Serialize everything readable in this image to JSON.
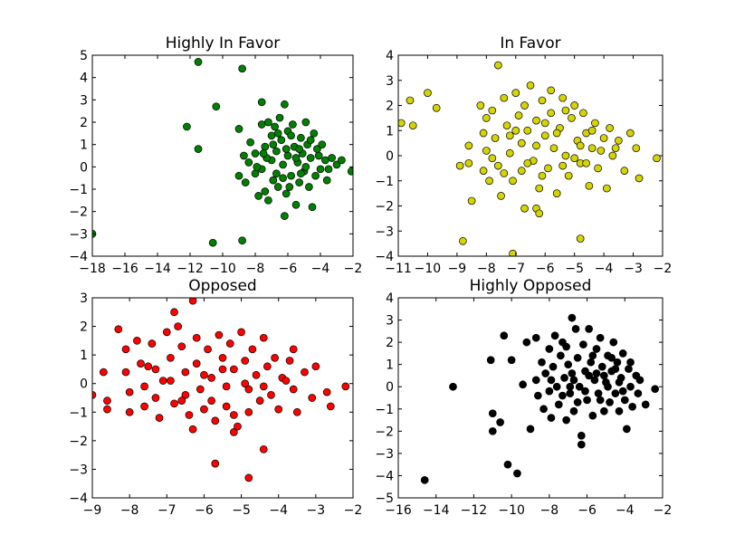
{
  "chart_data": [
    {
      "type": "scatter",
      "title": "Highly In Favor",
      "xlim": [
        -18,
        -2
      ],
      "ylim": [
        -4,
        5
      ],
      "xticks": [
        -18,
        -16,
        -14,
        -12,
        -10,
        -8,
        -6,
        -4,
        -2
      ],
      "yticks": [
        -4,
        -3,
        -2,
        -1,
        0,
        1,
        2,
        3,
        4,
        5
      ],
      "color": "#008000",
      "points": [
        [
          -18.0,
          -3.0
        ],
        [
          -11.5,
          4.7
        ],
        [
          -8.8,
          4.4
        ],
        [
          -12.2,
          1.8
        ],
        [
          -11.5,
          0.8
        ],
        [
          -10.4,
          2.7
        ],
        [
          -10.6,
          -3.4
        ],
        [
          -8.8,
          -3.3
        ],
        [
          -7.6,
          2.9
        ],
        [
          -6.2,
          2.8
        ],
        [
          -9.0,
          1.7
        ],
        [
          -9.0,
          -0.4
        ],
        [
          -8.6,
          -0.7
        ],
        [
          -8.4,
          0.2
        ],
        [
          -8.3,
          1.1
        ],
        [
          -8.0,
          0.6
        ],
        [
          -8.0,
          -0.3
        ],
        [
          -7.8,
          -1.3
        ],
        [
          -7.6,
          1.9
        ],
        [
          -7.6,
          -0.1
        ],
        [
          -7.4,
          0.9
        ],
        [
          -7.4,
          -1.1
        ],
        [
          -7.2,
          2.0
        ],
        [
          -7.2,
          -1.5
        ],
        [
          -7.0,
          1.4
        ],
        [
          -7.0,
          0.3
        ],
        [
          -6.9,
          -0.6
        ],
        [
          -6.8,
          1.8
        ],
        [
          -6.7,
          0.7
        ],
        [
          -6.6,
          -0.9
        ],
        [
          -6.5,
          2.2
        ],
        [
          -6.4,
          1.2
        ],
        [
          -6.3,
          0.1
        ],
        [
          -6.2,
          -2.2
        ],
        [
          -6.1,
          -1.2
        ],
        [
          -6.0,
          1.6
        ],
        [
          -6.0,
          0.5
        ],
        [
          -5.8,
          -0.4
        ],
        [
          -5.7,
          1.9
        ],
        [
          -5.6,
          0.9
        ],
        [
          -5.5,
          -1.7
        ],
        [
          -5.4,
          0.2
        ],
        [
          -5.3,
          -0.7
        ],
        [
          -5.2,
          1.3
        ],
        [
          -5.1,
          0.6
        ],
        [
          -5.0,
          -0.2
        ],
        [
          -4.9,
          2.0
        ],
        [
          -4.8,
          1.0
        ],
        [
          -4.7,
          -0.9
        ],
        [
          -4.6,
          0.4
        ],
        [
          -4.5,
          -1.8
        ],
        [
          -4.4,
          1.5
        ],
        [
          -4.3,
          -0.4
        ],
        [
          -4.2,
          0.8
        ],
        [
          -4.0,
          -0.1
        ],
        [
          -3.9,
          1.0
        ],
        [
          -3.7,
          0.3
        ],
        [
          -3.6,
          -0.6
        ],
        [
          -3.3,
          0.4
        ],
        [
          -3.0,
          0.1
        ],
        [
          -2.7,
          0.3
        ],
        [
          -2.1,
          -0.2
        ],
        [
          -8.7,
          0.5
        ],
        [
          -7.9,
          0.0
        ],
        [
          -7.3,
          0.4
        ],
        [
          -6.7,
          -0.3
        ],
        [
          -6.1,
          0.8
        ],
        [
          -5.5,
          0.4
        ],
        [
          -4.9,
          0.0
        ],
        [
          -4.1,
          0.5
        ],
        [
          -6.9,
          1.0
        ],
        [
          -6.3,
          -0.5
        ],
        [
          -5.8,
          1.4
        ],
        [
          -5.2,
          -0.3
        ],
        [
          -4.6,
          1.2
        ],
        [
          -3.5,
          -0.1
        ],
        [
          -7.5,
          0.6
        ],
        [
          -6.6,
          1.5
        ],
        [
          -5.9,
          -0.9
        ],
        [
          -5.3,
          0.8
        ]
      ]
    },
    {
      "type": "scatter",
      "title": "In Favor",
      "xlim": [
        -11,
        -2
      ],
      "ylim": [
        -4,
        4
      ],
      "xticks": [
        -11,
        -10,
        -9,
        -8,
        -7,
        -6,
        -5,
        -4,
        -3,
        -2
      ],
      "yticks": [
        -4,
        -3,
        -2,
        -1,
        0,
        1,
        2,
        3,
        4
      ],
      "color": "#d4d400",
      "points": [
        [
          -10.9,
          1.3
        ],
        [
          -10.6,
          2.2
        ],
        [
          -10.5,
          1.2
        ],
        [
          -10.0,
          2.5
        ],
        [
          -9.7,
          1.9
        ],
        [
          -8.9,
          -0.4
        ],
        [
          -8.8,
          -3.4
        ],
        [
          -7.6,
          3.6
        ],
        [
          -7.1,
          -3.9
        ],
        [
          -6.3,
          -2.1
        ],
        [
          -6.2,
          -2.3
        ],
        [
          -4.8,
          -3.3
        ],
        [
          -6.7,
          -2.1
        ],
        [
          -8.6,
          0.4
        ],
        [
          -8.6,
          -0.3
        ],
        [
          -8.5,
          -1.8
        ],
        [
          -8.2,
          2.0
        ],
        [
          -8.1,
          0.9
        ],
        [
          -8.1,
          -0.6
        ],
        [
          -8.0,
          1.5
        ],
        [
          -8.0,
          0.2
        ],
        [
          -7.9,
          -1.0
        ],
        [
          -7.8,
          1.8
        ],
        [
          -7.7,
          0.7
        ],
        [
          -7.6,
          -0.4
        ],
        [
          -7.5,
          -1.6
        ],
        [
          -7.4,
          2.3
        ],
        [
          -7.3,
          1.2
        ],
        [
          -7.2,
          0.1
        ],
        [
          -7.1,
          -1.0
        ],
        [
          -7.0,
          2.5
        ],
        [
          -6.9,
          1.6
        ],
        [
          -6.8,
          0.5
        ],
        [
          -6.8,
          -0.6
        ],
        [
          -6.7,
          2.0
        ],
        [
          -6.6,
          1.0
        ],
        [
          -6.5,
          2.8
        ],
        [
          -6.4,
          -0.2
        ],
        [
          -6.3,
          1.4
        ],
        [
          -6.2,
          -1.3
        ],
        [
          -6.1,
          2.2
        ],
        [
          -6.0,
          0.8
        ],
        [
          -5.9,
          -0.5
        ],
        [
          -5.8,
          2.6
        ],
        [
          -5.8,
          1.7
        ],
        [
          -5.7,
          0.3
        ],
        [
          -5.6,
          -1.5
        ],
        [
          -5.5,
          1.1
        ],
        [
          -5.4,
          2.3
        ],
        [
          -5.3,
          0.0
        ],
        [
          -5.2,
          -0.8
        ],
        [
          -5.1,
          1.5
        ],
        [
          -5.0,
          2.0
        ],
        [
          -4.9,
          0.6
        ],
        [
          -4.8,
          -0.3
        ],
        [
          -4.7,
          1.7
        ],
        [
          -4.6,
          0.9
        ],
        [
          -4.5,
          -1.2
        ],
        [
          -4.4,
          0.3
        ],
        [
          -4.3,
          1.3
        ],
        [
          -4.2,
          -0.5
        ],
        [
          -4.0,
          0.7
        ],
        [
          -3.9,
          -1.3
        ],
        [
          -3.8,
          1.1
        ],
        [
          -3.7,
          0.0
        ],
        [
          -3.5,
          0.6
        ],
        [
          -3.3,
          -0.6
        ],
        [
          -3.1,
          0.9
        ],
        [
          -2.9,
          0.3
        ],
        [
          -2.8,
          -0.9
        ],
        [
          -2.2,
          -0.1
        ],
        [
          -7.2,
          0.8
        ],
        [
          -6.6,
          -0.3
        ],
        [
          -6.0,
          1.3
        ],
        [
          -5.4,
          -0.4
        ],
        [
          -4.8,
          0.4
        ],
        [
          -4.1,
          0.2
        ],
        [
          -7.8,
          -0.1
        ],
        [
          -7.0,
          1.0
        ],
        [
          -6.3,
          0.4
        ],
        [
          -5.6,
          0.9
        ],
        [
          -5.0,
          -0.1
        ],
        [
          -4.4,
          1.0
        ],
        [
          -3.6,
          0.3
        ],
        [
          -7.4,
          -0.7
        ],
        [
          -6.1,
          -0.8
        ],
        [
          -5.3,
          1.8
        ],
        [
          -4.6,
          -0.3
        ]
      ]
    },
    {
      "type": "scatter",
      "title": "Opposed",
      "xlim": [
        -9,
        -2
      ],
      "ylim": [
        -4,
        3
      ],
      "xticks": [
        -9,
        -8,
        -7,
        -6,
        -5,
        -4,
        -3,
        -2
      ],
      "yticks": [
        -4,
        -3,
        -2,
        -1,
        0,
        1,
        2,
        3
      ],
      "color": "#ff0000",
      "points": [
        [
          -9.0,
          -0.4
        ],
        [
          -8.7,
          0.4
        ],
        [
          -8.6,
          -0.6
        ],
        [
          -8.6,
          -0.9
        ],
        [
          -8.3,
          1.9
        ],
        [
          -8.1,
          1.2
        ],
        [
          -8.1,
          0.4
        ],
        [
          -8.0,
          -0.3
        ],
        [
          -8.0,
          -1.0
        ],
        [
          -7.8,
          1.5
        ],
        [
          -7.7,
          0.7
        ],
        [
          -7.6,
          -0.1
        ],
        [
          -7.6,
          -0.8
        ],
        [
          -7.4,
          1.4
        ],
        [
          -7.3,
          0.5
        ],
        [
          -7.3,
          -0.5
        ],
        [
          -7.2,
          -1.2
        ],
        [
          -7.0,
          1.8
        ],
        [
          -6.9,
          0.9
        ],
        [
          -6.9,
          0.1
        ],
        [
          -6.8,
          -0.7
        ],
        [
          -6.8,
          2.5
        ],
        [
          -6.7,
          2.0
        ],
        [
          -6.6,
          1.3
        ],
        [
          -6.5,
          0.4
        ],
        [
          -6.5,
          -0.4
        ],
        [
          -6.4,
          -1.1
        ],
        [
          -6.3,
          2.9
        ],
        [
          -6.2,
          1.6
        ],
        [
          -6.2,
          0.7
        ],
        [
          -6.1,
          -0.2
        ],
        [
          -6.0,
          -0.9
        ],
        [
          -5.9,
          1.2
        ],
        [
          -5.8,
          0.2
        ],
        [
          -5.8,
          -0.6
        ],
        [
          -5.7,
          -1.3
        ],
        [
          -5.6,
          1.7
        ],
        [
          -5.5,
          0.9
        ],
        [
          -5.4,
          -0.1
        ],
        [
          -5.4,
          -0.8
        ],
        [
          -5.3,
          1.4
        ],
        [
          -5.2,
          0.5
        ],
        [
          -5.2,
          -1.7
        ],
        [
          -5.1,
          -1.5
        ],
        [
          -5.0,
          1.8
        ],
        [
          -4.9,
          0.8
        ],
        [
          -4.8,
          -0.2
        ],
        [
          -4.8,
          -1.0
        ],
        [
          -4.7,
          1.2
        ],
        [
          -4.6,
          0.3
        ],
        [
          -4.5,
          -0.6
        ],
        [
          -4.4,
          1.6
        ],
        [
          -4.3,
          0.6
        ],
        [
          -4.2,
          -0.4
        ],
        [
          -4.1,
          0.9
        ],
        [
          -4.0,
          -0.9
        ],
        [
          -3.9,
          0.2
        ],
        [
          -3.7,
          0.8
        ],
        [
          -3.6,
          -0.2
        ],
        [
          -3.6,
          1.2
        ],
        [
          -3.5,
          -1.0
        ],
        [
          -3.3,
          0.4
        ],
        [
          -3.1,
          -0.5
        ],
        [
          -3.0,
          0.6
        ],
        [
          -2.7,
          -0.3
        ],
        [
          -2.6,
          -0.8
        ],
        [
          -2.2,
          -0.1
        ],
        [
          -5.7,
          -2.8
        ],
        [
          -4.8,
          -3.3
        ],
        [
          -4.4,
          -2.3
        ],
        [
          -6.3,
          -1.6
        ],
        [
          -5.2,
          -1.1
        ],
        [
          -7.1,
          0.1
        ],
        [
          -6.0,
          0.3
        ],
        [
          -4.9,
          0.0
        ],
        [
          -3.8,
          0.1
        ],
        [
          -6.6,
          -0.6
        ],
        [
          -5.5,
          0.5
        ],
        [
          -4.4,
          -0.1
        ],
        [
          -7.5,
          0.6
        ]
      ]
    },
    {
      "type": "scatter",
      "title": "Highly Opposed",
      "xlim": [
        -16,
        -2
      ],
      "ylim": [
        -5,
        4
      ],
      "xticks": [
        -16,
        -14,
        -12,
        -10,
        -8,
        -6,
        -4,
        -2
      ],
      "yticks": [
        -5,
        -4,
        -3,
        -2,
        -1,
        0,
        1,
        2,
        3,
        4
      ],
      "color": "#000000",
      "points": [
        [
          -14.6,
          -4.2
        ],
        [
          -13.1,
          0.0
        ],
        [
          -11.1,
          1.2
        ],
        [
          -11.0,
          -1.2
        ],
        [
          -11.0,
          -2.0
        ],
        [
          -10.6,
          -1.6
        ],
        [
          -10.4,
          2.3
        ],
        [
          -10.2,
          -3.5
        ],
        [
          -10.0,
          1.2
        ],
        [
          -9.7,
          -3.9
        ],
        [
          -9.4,
          0.1
        ],
        [
          -9.2,
          2.0
        ],
        [
          -9.0,
          -1.9
        ],
        [
          -8.7,
          2.2
        ],
        [
          -8.7,
          0.3
        ],
        [
          -8.6,
          -0.4
        ],
        [
          -8.4,
          1.1
        ],
        [
          -8.3,
          -1.0
        ],
        [
          -8.2,
          0.6
        ],
        [
          -8.0,
          1.7
        ],
        [
          -8.0,
          -0.2
        ],
        [
          -7.9,
          -1.4
        ],
        [
          -7.8,
          0.9
        ],
        [
          -7.7,
          2.3
        ],
        [
          -7.6,
          0.0
        ],
        [
          -7.5,
          -0.8
        ],
        [
          -7.4,
          1.4
        ],
        [
          -7.3,
          2.0
        ],
        [
          -7.2,
          0.4
        ],
        [
          -7.1,
          -1.5
        ],
        [
          -7.0,
          1.0
        ],
        [
          -6.9,
          -0.3
        ],
        [
          -6.8,
          3.1
        ],
        [
          -6.8,
          0.6
        ],
        [
          -6.7,
          -1.1
        ],
        [
          -6.6,
          2.6
        ],
        [
          -6.5,
          1.3
        ],
        [
          -6.4,
          0.0
        ],
        [
          -6.3,
          -2.2
        ],
        [
          -6.3,
          -2.6
        ],
        [
          -6.2,
          1.9
        ],
        [
          -6.1,
          0.7
        ],
        [
          -6.0,
          -0.6
        ],
        [
          -5.9,
          2.6
        ],
        [
          -5.8,
          1.1
        ],
        [
          -5.7,
          -1.3
        ],
        [
          -5.6,
          0.3
        ],
        [
          -5.5,
          1.7
        ],
        [
          -5.4,
          -0.3
        ],
        [
          -5.3,
          2.2
        ],
        [
          -5.2,
          0.9
        ],
        [
          -5.1,
          -1.1
        ],
        [
          -5.0,
          0.2
        ],
        [
          -4.9,
          1.4
        ],
        [
          -4.8,
          -0.7
        ],
        [
          -4.7,
          0.7
        ],
        [
          -4.6,
          2.0
        ],
        [
          -4.5,
          -0.3
        ],
        [
          -4.4,
          1.1
        ],
        [
          -4.3,
          -1.1
        ],
        [
          -4.2,
          0.4
        ],
        [
          -4.1,
          1.5
        ],
        [
          -4.0,
          -0.6
        ],
        [
          -3.9,
          -1.9
        ],
        [
          -3.8,
          0.8
        ],
        [
          -3.7,
          0.0
        ],
        [
          -3.6,
          -0.9
        ],
        [
          -3.4,
          0.5
        ],
        [
          -3.3,
          -0.3
        ],
        [
          -3.2,
          0.3
        ],
        [
          -2.9,
          -0.8
        ],
        [
          -2.4,
          -0.1
        ],
        [
          -7.9,
          0.3
        ],
        [
          -7.3,
          -0.4
        ],
        [
          -6.7,
          0.3
        ],
        [
          -6.1,
          -0.2
        ],
        [
          -5.5,
          0.6
        ],
        [
          -4.9,
          0.0
        ],
        [
          -4.3,
          0.2
        ],
        [
          -3.7,
          1.1
        ],
        [
          -7.1,
          1.8
        ],
        [
          -6.5,
          -0.7
        ],
        [
          -5.9,
          0.5
        ],
        [
          -5.3,
          -0.6
        ],
        [
          -4.7,
          1.3
        ],
        [
          -4.1,
          -0.2
        ],
        [
          -6.9,
          0.0
        ],
        [
          -5.7,
          1.4
        ],
        [
          -5.1,
          0.5
        ],
        [
          -4.5,
          0.8
        ]
      ]
    }
  ]
}
